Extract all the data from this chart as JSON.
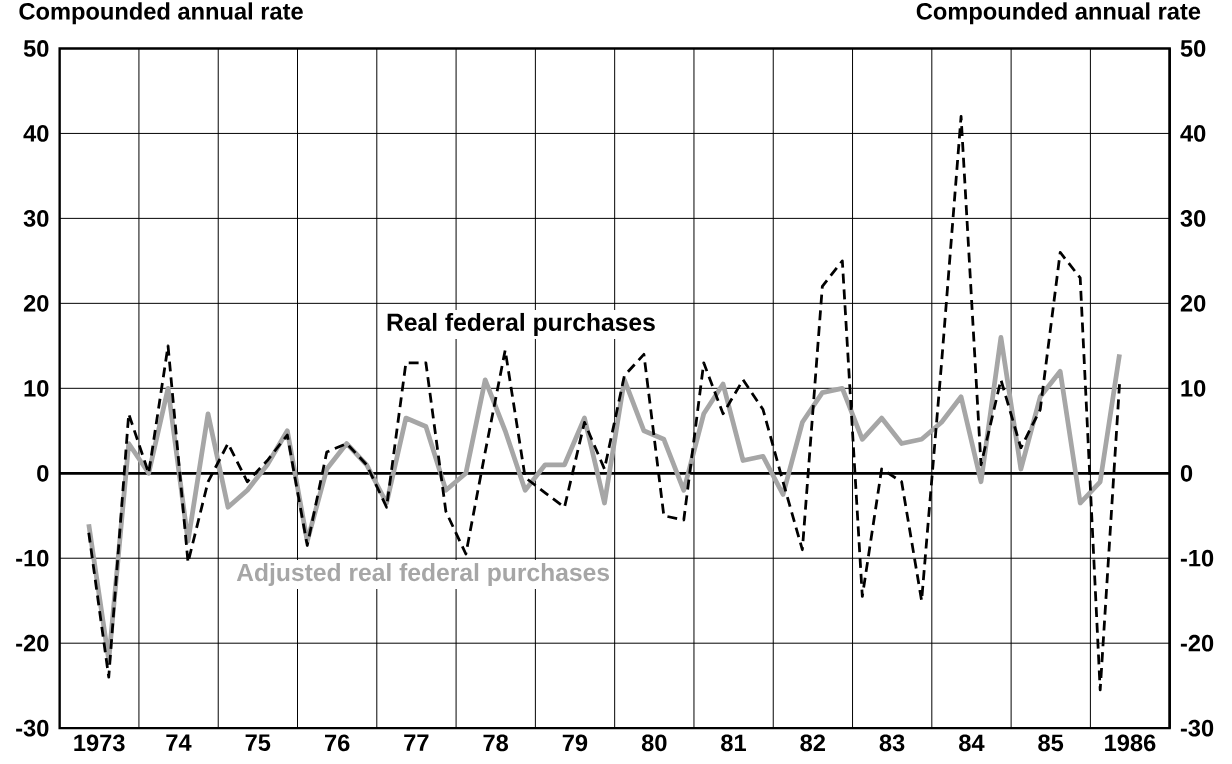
{
  "chart_data": {
    "type": "line",
    "ylabel": "Compounded annual rate",
    "y2label": "Compounded annual rate",
    "x": [
      "1973-05-15",
      "1973-08-15",
      "1973-11-15",
      "1974-02-15",
      "1974-05-15",
      "1974-08-15",
      "1974-11-15",
      "1975-02-15",
      "1975-05-15",
      "1975-08-15",
      "1975-11-15",
      "1976-02-15",
      "1976-05-15",
      "1976-08-15",
      "1976-11-15",
      "1977-02-15",
      "1977-05-15",
      "1977-08-15",
      "1977-11-15",
      "1978-02-15",
      "1978-05-15",
      "1978-08-15",
      "1978-11-15",
      "1979-02-15",
      "1979-05-15",
      "1979-08-15",
      "1979-11-15",
      "1980-02-15",
      "1980-05-15",
      "1980-08-15",
      "1980-11-15",
      "1981-02-15",
      "1981-05-15",
      "1981-08-15",
      "1981-11-15",
      "1982-02-15",
      "1982-05-15",
      "1982-08-15",
      "1982-11-15",
      "1983-02-15",
      "1983-05-15",
      "1983-08-15",
      "1983-11-15",
      "1984-02-15",
      "1984-05-15",
      "1984-08-15",
      "1984-11-15",
      "1985-02-15",
      "1985-05-15",
      "1985-08-15",
      "1985-11-15",
      "1986-02-15",
      "1986-05-15"
    ],
    "series": [
      {
        "name": "Adjusted real federal purchases",
        "color": "#a6a6a6",
        "line_style": "solid",
        "values": [
          -6,
          -22,
          3.5,
          0,
          10,
          -8,
          7,
          -4,
          -2,
          1,
          5,
          -8,
          0.5,
          3.5,
          1,
          -3.5,
          6.5,
          5.5,
          -2,
          0,
          11,
          5,
          -2,
          1,
          1,
          6.5,
          -3.5,
          11,
          5,
          4,
          -2,
          7,
          10.5,
          1.5,
          2,
          -2.5,
          6,
          9.5,
          10,
          4,
          6.5,
          3.5,
          4,
          6,
          9,
          -1,
          16,
          0.5,
          9,
          12,
          -3.5,
          -1,
          14
        ]
      },
      {
        "name": "Real federal purchases",
        "color": "#000000",
        "line_style": "dashed",
        "values": [
          -7,
          -24,
          7,
          0,
          15,
          -10.5,
          -1,
          3.5,
          -1,
          1.5,
          4.5,
          -8.5,
          2.5,
          3.5,
          1,
          -4,
          13,
          13,
          -4.5,
          -9.5,
          2.5,
          14.5,
          -0.5,
          -2.3,
          -4,
          6,
          0.5,
          11.5,
          14,
          -5,
          -5.5,
          13,
          7,
          11,
          7.5,
          -1,
          -9,
          22,
          25,
          -14.5,
          0.5,
          -1,
          -15,
          13,
          42,
          1,
          11,
          3,
          7.5,
          26,
          23,
          -25.5,
          10.5
        ]
      }
    ],
    "xlim": [
      "1973-01-01",
      "1987-01-01"
    ],
    "xticks": [
      {
        "value": "1974-01-01",
        "label": null
      },
      {
        "value": "1975-01-01",
        "label": null
      },
      {
        "value": "1976-01-01",
        "label": null
      },
      {
        "value": "1977-01-01",
        "label": null
      },
      {
        "value": "1978-01-01",
        "label": null
      },
      {
        "value": "1979-01-01",
        "label": null
      },
      {
        "value": "1980-01-01",
        "label": null
      },
      {
        "value": "1981-01-01",
        "label": null
      },
      {
        "value": "1982-01-01",
        "label": null
      },
      {
        "value": "1983-01-01",
        "label": null
      },
      {
        "value": "1984-01-01",
        "label": null
      },
      {
        "value": "1985-01-01",
        "label": null
      },
      {
        "value": "1986-01-01",
        "label": null
      },
      {
        "value": "1973-07-02",
        "label": "1973"
      },
      {
        "value": "1974-07-02",
        "label": "74"
      },
      {
        "value": "1975-07-02",
        "label": "75"
      },
      {
        "value": "1976-07-02",
        "label": "76"
      },
      {
        "value": "1977-07-02",
        "label": "77"
      },
      {
        "value": "1978-07-02",
        "label": "78"
      },
      {
        "value": "1979-07-02",
        "label": "79"
      },
      {
        "value": "1980-07-02",
        "label": "80"
      },
      {
        "value": "1981-07-02",
        "label": "81"
      },
      {
        "value": "1982-07-02",
        "label": "82"
      },
      {
        "value": "1983-07-02",
        "label": "83"
      },
      {
        "value": "1984-07-02",
        "label": "84"
      },
      {
        "value": "1985-07-02",
        "label": "85"
      },
      {
        "value": "1986-07-02",
        "label": "1986"
      }
    ],
    "ylim": [
      -30,
      50
    ],
    "yticks": [
      -30,
      -20,
      -10,
      0,
      10,
      20,
      30,
      40,
      50
    ],
    "y2lim": [
      -30,
      50
    ],
    "y2ticks": [
      -30,
      -20,
      -10,
      0,
      10,
      20,
      30,
      40,
      50
    ],
    "ref_lines": [
      {
        "axis": "y",
        "value": 0
      }
    ],
    "grid": true,
    "marker": "none"
  }
}
